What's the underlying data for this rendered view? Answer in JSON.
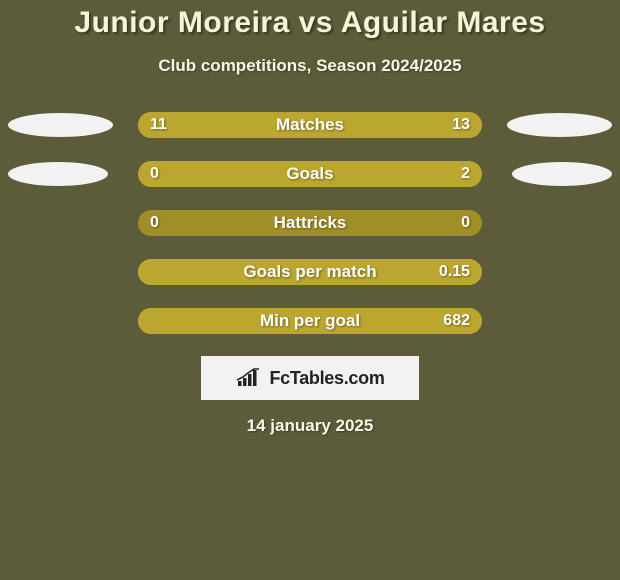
{
  "colors": {
    "page_bg": "#5c5c3b",
    "title": "#f5f5d8",
    "subtitle": "#f7f7e6",
    "bar_track": "#a08f27",
    "bar_left": "#bba730",
    "bar_right": "#bba730",
    "value_text": "#ffffff",
    "metric_text": "#ffffff",
    "ellipse_left": "#f2f2f2",
    "ellipse_right": "#f2f2f2",
    "badge_bg": "#f2f2f2",
    "badge_text": "#222222",
    "date_text": "#f7f7e6"
  },
  "title": "Junior Moreira vs Aguilar Mares",
  "subtitle": "Club competitions, Season 2024/2025",
  "date": "14 january 2025",
  "brand": "FcTables.com",
  "ellipse_sizes": {
    "row0": {
      "left_w": 105,
      "right_w": 105
    },
    "row1": {
      "left_w": 100,
      "right_w": 100
    }
  },
  "rows": [
    {
      "metric": "Matches",
      "left_val": "11",
      "right_val": "13",
      "left_pct": 45.8,
      "right_pct": 54.2,
      "show_ellipses": true
    },
    {
      "metric": "Goals",
      "left_val": "0",
      "right_val": "2",
      "left_pct": 18.0,
      "right_pct": 86.0,
      "show_ellipses": true
    },
    {
      "metric": "Hattricks",
      "left_val": "0",
      "right_val": "0",
      "left_pct": 0.0,
      "right_pct": 0.0,
      "show_ellipses": false
    },
    {
      "metric": "Goals per match",
      "left_val": "",
      "right_val": "0.15",
      "left_pct": 0.0,
      "right_pct": 100.0,
      "show_ellipses": false
    },
    {
      "metric": "Min per goal",
      "left_val": "",
      "right_val": "682",
      "left_pct": 0.0,
      "right_pct": 100.0,
      "show_ellipses": false
    }
  ]
}
